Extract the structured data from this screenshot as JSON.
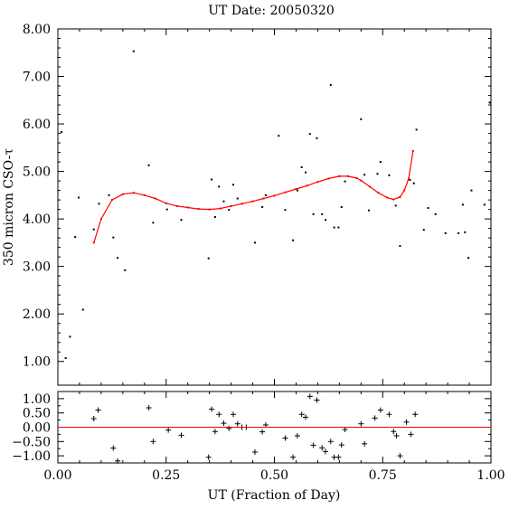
{
  "chart_data": [
    {
      "type": "scatter",
      "title": "UT Date: 20050320",
      "xlabel": "",
      "ylabel": "350 micron CSO-τ",
      "xlim": [
        0.0,
        1.0
      ],
      "ylim": [
        0.5,
        8.0
      ],
      "grid": false,
      "yticks": [
        1.0,
        2.0,
        3.0,
        4.0,
        5.0,
        6.0,
        7.0,
        8.0
      ],
      "ytick_labels": [
        "1.00",
        "2.00",
        "3.00",
        "4.00",
        "5.00",
        "6.00",
        "7.00",
        "8.00"
      ],
      "series": [
        {
          "style": "points",
          "color": "#000000",
          "points": [
            [
              0.008,
              5.83
            ],
            [
              0.018,
              1.07
            ],
            [
              0.028,
              1.52
            ],
            [
              0.04,
              3.62
            ],
            [
              0.048,
              4.45
            ],
            [
              0.058,
              2.09
            ],
            [
              0.083,
              3.78
            ],
            [
              0.095,
              4.32
            ],
            [
              0.118,
              4.5
            ],
            [
              0.128,
              3.61
            ],
            [
              0.138,
              3.18
            ],
            [
              0.155,
              2.92
            ],
            [
              0.175,
              7.53
            ],
            [
              0.21,
              5.13
            ],
            [
              0.22,
              3.92
            ],
            [
              0.252,
              4.2
            ],
            [
              0.285,
              3.98
            ],
            [
              0.348,
              3.17
            ],
            [
              0.355,
              4.83
            ],
            [
              0.363,
              4.04
            ],
            [
              0.372,
              4.68
            ],
            [
              0.383,
              4.37
            ],
            [
              0.395,
              4.19
            ],
            [
              0.405,
              4.72
            ],
            [
              0.415,
              4.43
            ],
            [
              0.455,
              3.5
            ],
            [
              0.472,
              4.25
            ],
            [
              0.48,
              4.5
            ],
            [
              0.51,
              5.75
            ],
            [
              0.525,
              4.19
            ],
            [
              0.543,
              3.55
            ],
            [
              0.553,
              4.6
            ],
            [
              0.563,
              5.09
            ],
            [
              0.572,
              4.98
            ],
            [
              0.582,
              5.79
            ],
            [
              0.59,
              4.1
            ],
            [
              0.598,
              5.7
            ],
            [
              0.61,
              4.1
            ],
            [
              0.618,
              3.98
            ],
            [
              0.63,
              6.82
            ],
            [
              0.638,
              3.82
            ],
            [
              0.648,
              3.82
            ],
            [
              0.655,
              4.25
            ],
            [
              0.663,
              4.79
            ],
            [
              0.7,
              6.1
            ],
            [
              0.708,
              4.93
            ],
            [
              0.718,
              4.18
            ],
            [
              0.738,
              4.95
            ],
            [
              0.745,
              5.2
            ],
            [
              0.765,
              4.92
            ],
            [
              0.78,
              4.28
            ],
            [
              0.79,
              3.43
            ],
            [
              0.813,
              4.82
            ],
            [
              0.822,
              4.75
            ],
            [
              0.828,
              5.88
            ],
            [
              0.845,
              3.77
            ],
            [
              0.855,
              4.23
            ],
            [
              0.872,
              4.1
            ],
            [
              0.895,
              3.7
            ],
            [
              0.925,
              3.7
            ],
            [
              0.935,
              4.3
            ],
            [
              0.94,
              3.72
            ],
            [
              0.948,
              3.18
            ],
            [
              0.955,
              4.6
            ],
            [
              0.985,
              4.3
            ],
            [
              0.997,
              6.45
            ]
          ]
        },
        {
          "style": "fit-line",
          "color": "#ff0000",
          "points": [
            [
              0.083,
              3.5
            ],
            [
              0.1,
              4.0
            ],
            [
              0.125,
              4.4
            ],
            [
              0.15,
              4.52
            ],
            [
              0.175,
              4.55
            ],
            [
              0.2,
              4.5
            ],
            [
              0.225,
              4.43
            ],
            [
              0.25,
              4.33
            ],
            [
              0.275,
              4.27
            ],
            [
              0.3,
              4.24
            ],
            [
              0.325,
              4.21
            ],
            [
              0.35,
              4.2
            ],
            [
              0.375,
              4.22
            ],
            [
              0.4,
              4.27
            ],
            [
              0.425,
              4.32
            ],
            [
              0.45,
              4.37
            ],
            [
              0.475,
              4.43
            ],
            [
              0.5,
              4.49
            ],
            [
              0.525,
              4.56
            ],
            [
              0.55,
              4.63
            ],
            [
              0.575,
              4.7
            ],
            [
              0.6,
              4.78
            ],
            [
              0.625,
              4.85
            ],
            [
              0.65,
              4.9
            ],
            [
              0.67,
              4.9
            ],
            [
              0.69,
              4.86
            ],
            [
              0.7,
              4.81
            ],
            [
              0.72,
              4.68
            ],
            [
              0.74,
              4.55
            ],
            [
              0.76,
              4.45
            ],
            [
              0.775,
              4.41
            ],
            [
              0.79,
              4.46
            ],
            [
              0.8,
              4.6
            ],
            [
              0.81,
              4.85
            ],
            [
              0.82,
              5.43
            ]
          ]
        }
      ]
    },
    {
      "type": "scatter",
      "title": "",
      "xlabel": "UT (Fraction of Day)",
      "ylabel": "",
      "xlim": [
        0.0,
        1.0
      ],
      "ylim": [
        -1.25,
        1.25
      ],
      "grid": false,
      "xticks": [
        0.0,
        0.25,
        0.5,
        0.75,
        1.0
      ],
      "xtick_labels": [
        "0.00",
        "0.25",
        "0.50",
        "0.75",
        "1.00"
      ],
      "yticks": [
        1.0,
        0.5,
        0.0,
        -0.5,
        -1.0
      ],
      "ytick_labels": [
        "1.00",
        "0.50",
        "0.00",
        "−0.50",
        "−1.00"
      ],
      "series": [
        {
          "style": "crosses",
          "color": "#000000",
          "points": [
            [
              0.083,
              0.3
            ],
            [
              0.093,
              0.6
            ],
            [
              0.128,
              -0.73
            ],
            [
              0.138,
              -1.18
            ],
            [
              0.21,
              0.68
            ],
            [
              0.22,
              -0.5
            ],
            [
              0.255,
              -0.1
            ],
            [
              0.285,
              -0.28
            ],
            [
              0.348,
              -1.05
            ],
            [
              0.355,
              0.63
            ],
            [
              0.363,
              -0.15
            ],
            [
              0.372,
              0.45
            ],
            [
              0.383,
              0.14
            ],
            [
              0.395,
              -0.04
            ],
            [
              0.405,
              0.45
            ],
            [
              0.415,
              0.12
            ],
            [
              0.425,
              0.0
            ],
            [
              0.435,
              0.0
            ],
            [
              0.455,
              -0.87
            ],
            [
              0.472,
              -0.16
            ],
            [
              0.48,
              0.08
            ],
            [
              0.525,
              -0.38
            ],
            [
              0.543,
              -1.05
            ],
            [
              0.553,
              -0.3
            ],
            [
              0.563,
              0.45
            ],
            [
              0.572,
              0.35
            ],
            [
              0.582,
              1.08
            ],
            [
              0.59,
              -0.63
            ],
            [
              0.598,
              0.95
            ],
            [
              0.61,
              -0.72
            ],
            [
              0.618,
              -0.85
            ],
            [
              0.63,
              -0.5
            ],
            [
              0.638,
              -1.05
            ],
            [
              0.648,
              -1.05
            ],
            [
              0.655,
              -0.62
            ],
            [
              0.663,
              -0.08
            ],
            [
              0.7,
              0.12
            ],
            [
              0.708,
              -0.58
            ],
            [
              0.732,
              0.32
            ],
            [
              0.745,
              0.6
            ],
            [
              0.765,
              0.45
            ],
            [
              0.775,
              -0.15
            ],
            [
              0.782,
              -0.3
            ],
            [
              0.79,
              -1.0
            ],
            [
              0.805,
              0.18
            ],
            [
              0.815,
              -0.25
            ],
            [
              0.825,
              0.45
            ]
          ]
        },
        {
          "style": "zero-line",
          "color": "#ff0000",
          "points": [
            [
              0.0,
              0.0
            ],
            [
              1.0,
              0.0
            ]
          ]
        }
      ]
    }
  ]
}
